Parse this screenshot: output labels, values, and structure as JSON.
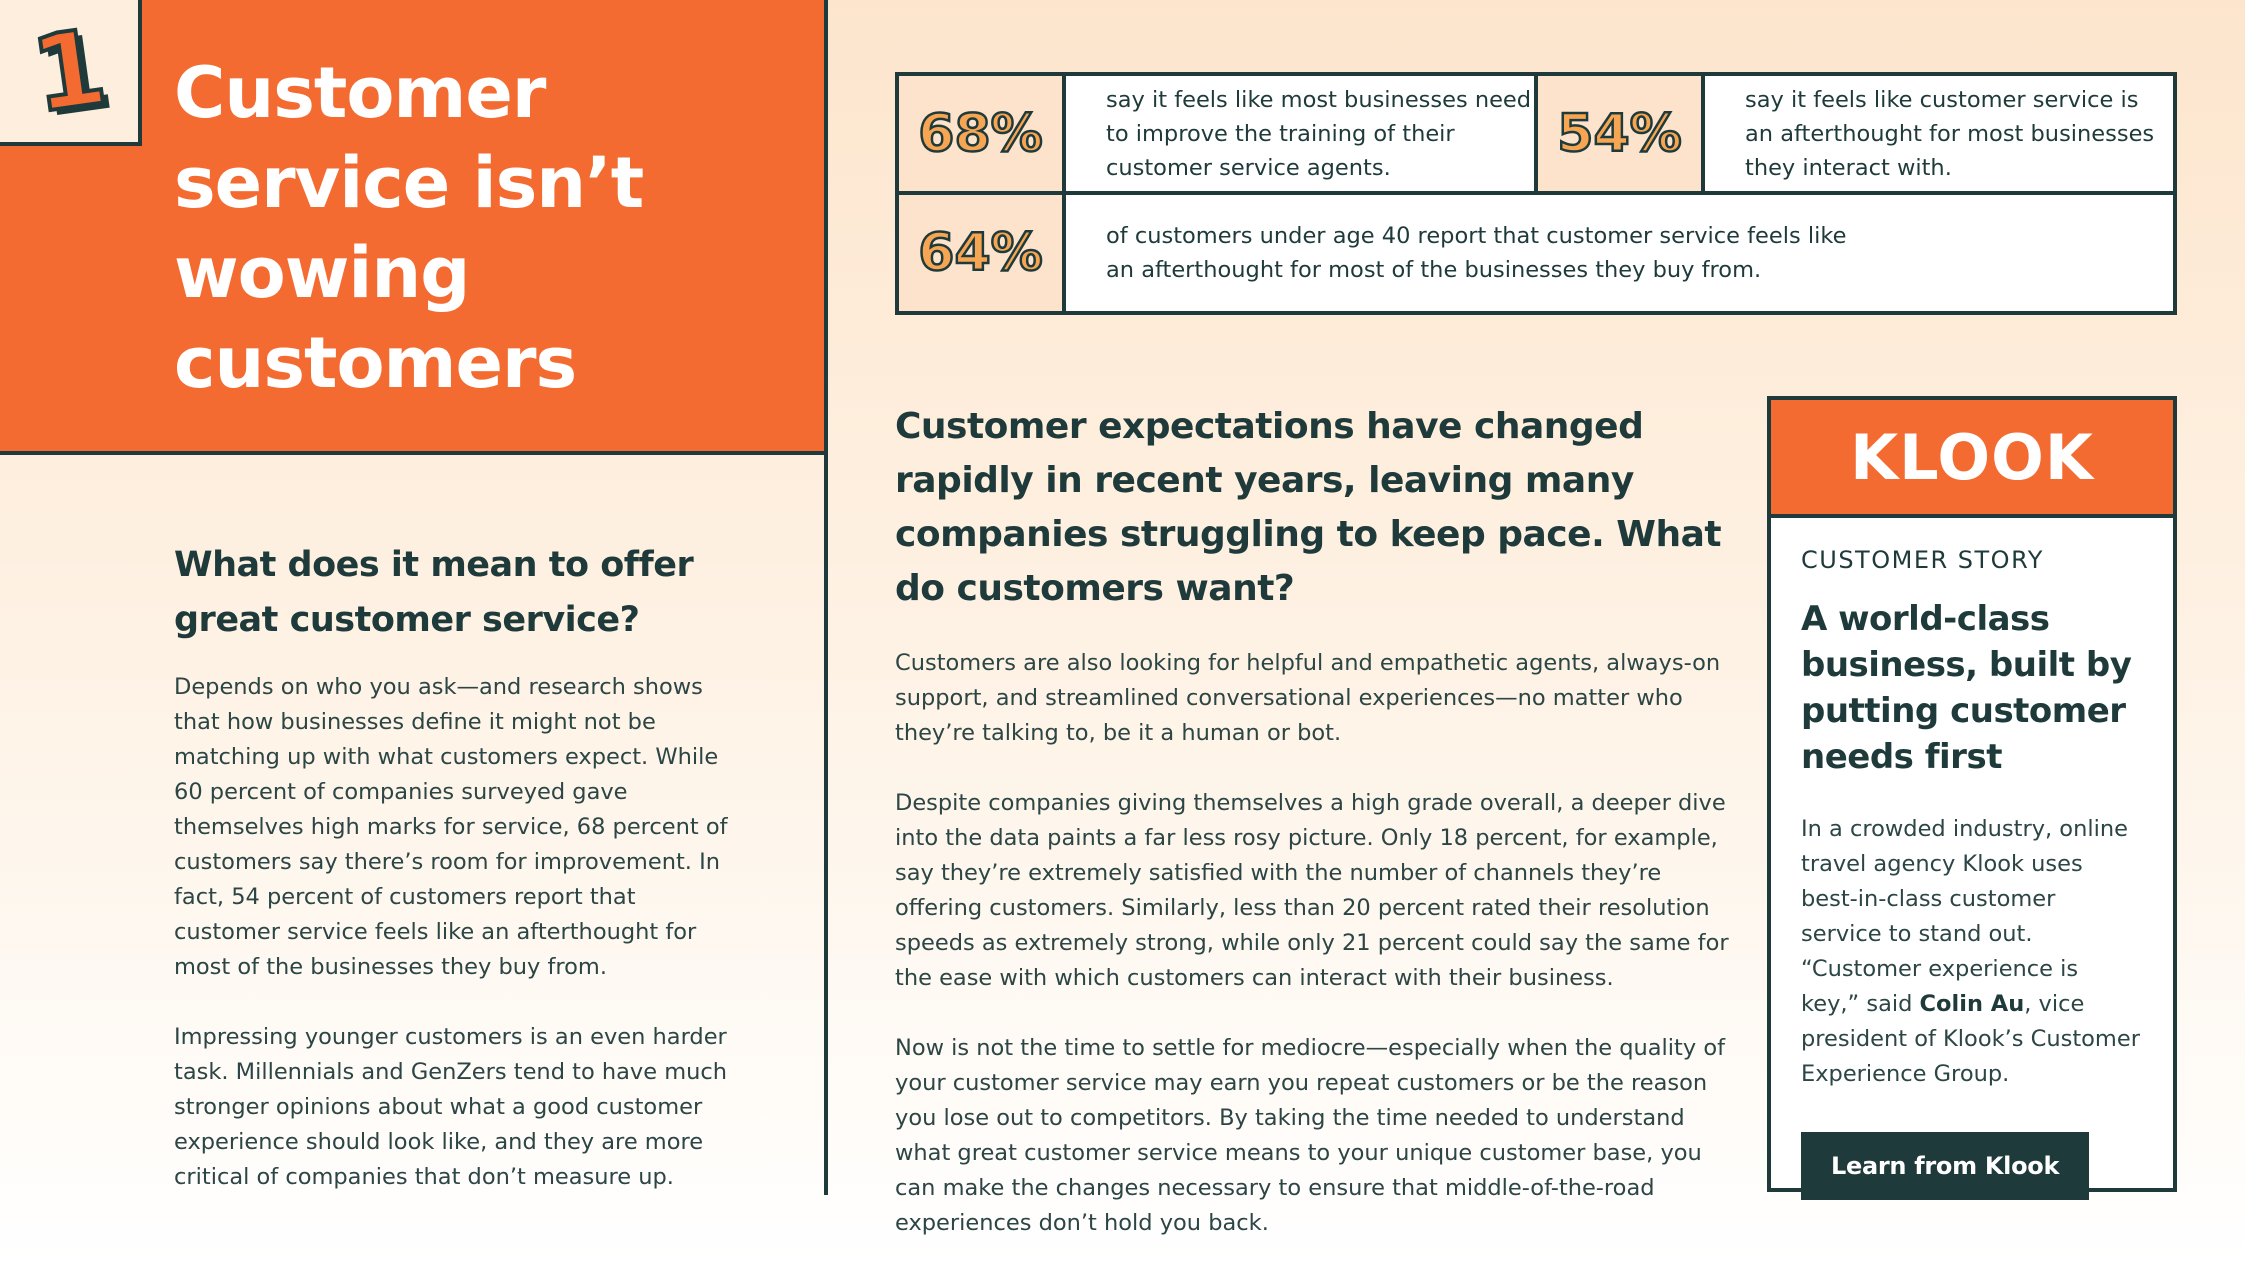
{
  "hero": {
    "number": "1",
    "title": "Customer service isn’t wowing customers"
  },
  "left": {
    "heading": "What does it mean to offer great customer service?",
    "para1": "Depends on who you ask—and research shows that how businesses define it might not be matching up with what customers expect. While 60 percent of companies surveyed gave themselves high marks for service, 68 percent of customers say there’s room for improvement. In fact, 54 percent of customers report that customer service feels like an afterthought for most of the businesses they buy from.",
    "para2": "Impressing younger customers is an even harder task. Millennials and GenZers tend to have much stronger opinions about what a good customer experience should look like, and they are more critical of companies that don’t measure up."
  },
  "stats": [
    {
      "value": "68%",
      "text": "say it feels like most businesses need to improve the training of their customer service agents."
    },
    {
      "value": "54%",
      "text": "say it feels like customer service is an afterthought for most businesses they interact with."
    },
    {
      "value": "64%",
      "text": "of customers under age 40 report that customer service feels like an afterthought for most of the businesses they buy from."
    }
  ],
  "middle": {
    "lead": "Customer expectations have changed rapidly in recent years, leaving many companies struggling to keep pace. What do customers want?",
    "para1": "Customers are also looking for helpful and empathetic agents, always-on support, and streamlined conversational experiences—no matter who they’re talking to, be it a human or bot.",
    "para2": "Despite companies giving themselves a high grade overall, a deeper dive into the data paints a far less rosy picture. Only 18 percent, for example, say they’re extremely satisfied with the number of channels they’re offering customers. Similarly, less than 20 percent rated their resolution speeds as extremely strong, while only 21 percent could say the same for the ease with which customers can interact with their business.",
    "para3": "Now is not the time to settle for mediocre—especially when the quality of your customer service may earn you repeat customers or be the reason you lose out to competitors. By taking the time needed to understand what great customer service means to your unique customer base, you can make the changes necessary to ensure that middle-of-the-road experiences don’t hold you back."
  },
  "card": {
    "logo": "KLOOK",
    "label": "CUSTOMER STORY",
    "title": "A world-class business, built by putting customer needs first",
    "text_before": "In a crowded industry, online travel agency Klook uses best-in-class customer service to stand out. “Customer experience is key,” said ",
    "name": "Colin Au",
    "text_after": ", vice president of Klook’s Customer Experience Group.",
    "button": "Learn from Klook"
  },
  "colors": {
    "orange": "#f46b31",
    "dark_teal": "#1f3a3a",
    "stat_orange": "#f6a552"
  }
}
